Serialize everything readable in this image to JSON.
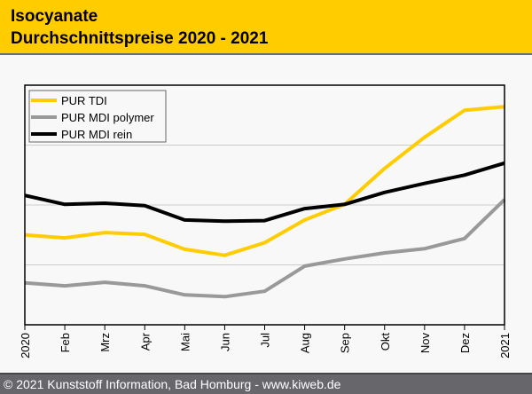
{
  "header": {
    "title_line1": "Isocyanate",
    "title_line2": "Durchschnittspreise 2020 - 2021"
  },
  "footer": {
    "text": "© 2021 Kunststoff Information, Bad Homburg - www.kiweb.de"
  },
  "colors": {
    "header_bg": "#ffcc00",
    "footer_bg": "#66666b",
    "tdi": "#ffcc00",
    "mdi_polymer": "#999999",
    "mdi_rein": "#000000"
  },
  "chart_data": {
    "type": "line",
    "title": "Isocyanate Durchschnittspreise 2020 - 2021",
    "xlabel": "",
    "ylabel": "",
    "y_note": "No y-axis tick labels shown; values are relative units read against the 3 horizontal gridlines (0 = axis bottom, 4 = plot top)",
    "ylim": [
      0,
      4
    ],
    "y_gridlines": [
      1,
      2,
      3
    ],
    "grid": true,
    "legend_position": "top-left",
    "categories": [
      "2020",
      "Feb",
      "Mrz",
      "Apr",
      "Mai",
      "Jun",
      "Jul",
      "Aug",
      "Sep",
      "Okt",
      "Nov",
      "Dez",
      "2021"
    ],
    "series": [
      {
        "name": "PUR TDI",
        "color": "#ffcc00",
        "values": [
          1.5,
          1.45,
          1.54,
          1.51,
          1.26,
          1.16,
          1.37,
          1.75,
          2.01,
          2.61,
          3.13,
          3.58,
          3.64
        ]
      },
      {
        "name": "PUR MDI polymer",
        "color": "#999999",
        "values": [
          0.7,
          0.65,
          0.71,
          0.65,
          0.5,
          0.47,
          0.56,
          0.98,
          1.1,
          1.2,
          1.27,
          1.44,
          2.09
        ]
      },
      {
        "name": "PUR MDI rein",
        "color": "#000000",
        "values": [
          2.16,
          2.01,
          2.03,
          1.99,
          1.75,
          1.73,
          1.74,
          1.94,
          2.01,
          2.21,
          2.36,
          2.5,
          2.7
        ]
      }
    ]
  }
}
